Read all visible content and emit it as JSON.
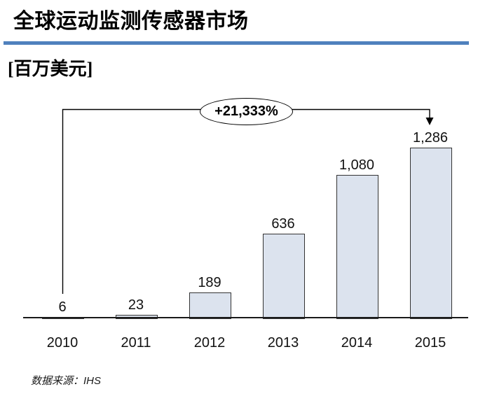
{
  "header": {
    "title": "全球运动监测传感器市场",
    "unit_label": "[百万美元]",
    "divider_color": "#4f81bd"
  },
  "chart_data": {
    "type": "bar",
    "title": "全球运动监测传感器市场",
    "ylabel": "百万美元",
    "xlabel": "",
    "categories": [
      "2010",
      "2011",
      "2012",
      "2013",
      "2014",
      "2015"
    ],
    "values": [
      6,
      23,
      189,
      636,
      1080,
      1286
    ],
    "value_labels": [
      "6",
      "23",
      "189",
      "636",
      "1,080",
      "1,286"
    ],
    "annotation": "+21,333%",
    "ylim": [
      0,
      1300
    ],
    "grid": false,
    "legend": false,
    "bar_fill": "#dce3ee",
    "bar_border": "#333333",
    "axis_color": "#1a1a1a"
  },
  "footer": {
    "source": "数据来源：IHS"
  }
}
